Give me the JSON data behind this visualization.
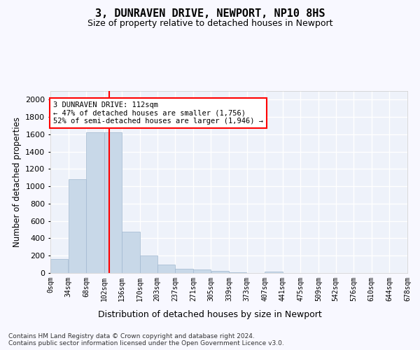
{
  "title": "3, DUNRAVEN DRIVE, NEWPORT, NP10 8HS",
  "subtitle": "Size of property relative to detached houses in Newport",
  "xlabel": "Distribution of detached houses by size in Newport",
  "ylabel": "Number of detached properties",
  "bar_color": "#c8d8e8",
  "bar_edgecolor": "#a0b8d0",
  "vline_x": 112,
  "vline_color": "red",
  "annotation_text": "3 DUNRAVEN DRIVE: 112sqm\n← 47% of detached houses are smaller (1,756)\n52% of semi-detached houses are larger (1,946) →",
  "bins": [
    0,
    34,
    68,
    102,
    136,
    170,
    203,
    237,
    271,
    305,
    339,
    373,
    407,
    441,
    475,
    509,
    542,
    576,
    610,
    644,
    678
  ],
  "bin_labels": [
    "0sqm",
    "34sqm",
    "68sqm",
    "102sqm",
    "136sqm",
    "170sqm",
    "203sqm",
    "237sqm",
    "271sqm",
    "305sqm",
    "339sqm",
    "373sqm",
    "407sqm",
    "441sqm",
    "475sqm",
    "509sqm",
    "542sqm",
    "576sqm",
    "610sqm",
    "644sqm",
    "678sqm"
  ],
  "bar_heights": [
    160,
    1085,
    1625,
    1620,
    480,
    200,
    100,
    45,
    40,
    25,
    5,
    0,
    20,
    0,
    0,
    0,
    0,
    0,
    0,
    0
  ],
  "ylim": [
    0,
    2100
  ],
  "yticks": [
    0,
    200,
    400,
    600,
    800,
    1000,
    1200,
    1400,
    1600,
    1800,
    2000
  ],
  "bg_color": "#eef2fa",
  "grid_color": "#ffffff",
  "fig_bg": "#f8f8ff",
  "footer_text": "Contains HM Land Registry data © Crown copyright and database right 2024.\nContains public sector information licensed under the Open Government Licence v3.0."
}
